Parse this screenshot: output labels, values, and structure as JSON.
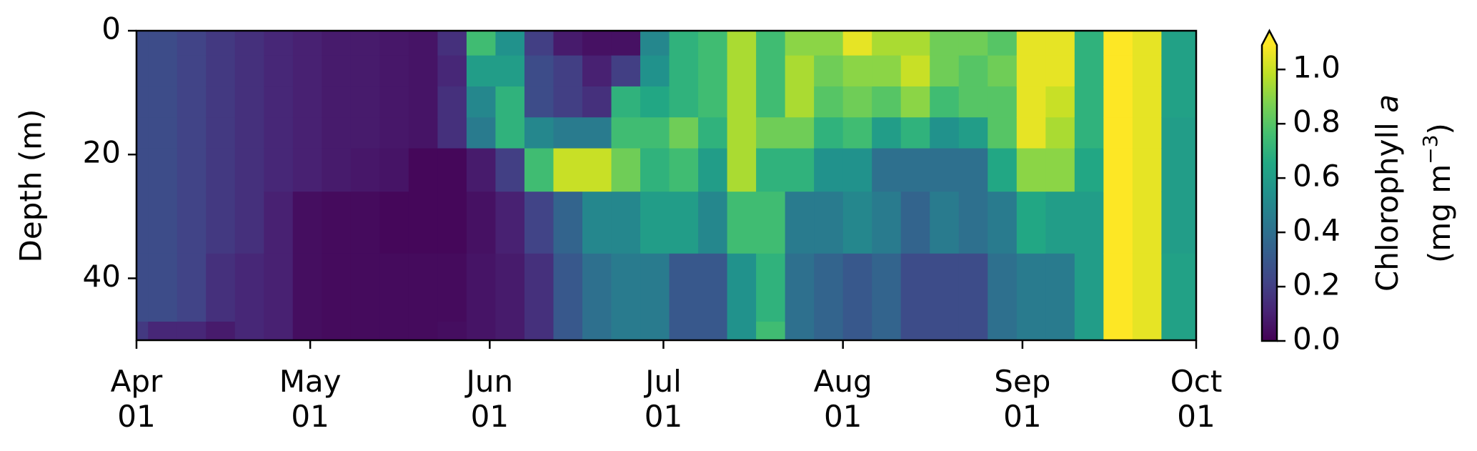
{
  "chart_data": {
    "type": "heatmap",
    "y_label": "Depth (m)",
    "colorbar_label": [
      "Chlorophyll",
      "a"
    ],
    "colorbar_units": [
      "(mg m",
      "−3",
      ")"
    ],
    "colormap": "viridis",
    "clim": [
      0,
      1.09
    ],
    "cticks": [
      {
        "value": 0,
        "label": "0.0"
      },
      0.2,
      0.4,
      0.6,
      0.8,
      {
        "value": 1,
        "label": "1.0"
      }
    ],
    "xlim": [
      "04-01",
      "10-01"
    ],
    "xticks": [
      {
        "value": "04-01",
        "label": [
          "Apr",
          "01"
        ]
      },
      {
        "value": "05-01",
        "label": [
          "May",
          "01"
        ]
      },
      {
        "value": "06-01",
        "label": [
          "Jun",
          "01"
        ]
      },
      {
        "value": "07-01",
        "label": [
          "Jul",
          "01"
        ]
      },
      {
        "value": "08-01",
        "label": [
          "Aug",
          "01"
        ]
      },
      {
        "value": "09-01",
        "label": [
          "Sep",
          "01"
        ]
      },
      {
        "value": "10-01",
        "label": [
          "Oct",
          "01"
        ]
      }
    ],
    "ylim": [
      50,
      0
    ],
    "yticks": [
      0,
      20,
      40
    ],
    "x_edges": [
      "04-01",
      "04-03",
      "04-08",
      "04-13",
      "04-18",
      "04-23",
      "04-28",
      "05-03",
      "05-08",
      "05-13",
      "05-18",
      "05-23",
      "05-28",
      "06-02",
      "06-07",
      "06-12",
      "06-17",
      "06-22",
      "06-27",
      "07-02",
      "07-07",
      "07-12",
      "07-17",
      "07-22",
      "07-27",
      "08-01",
      "08-06",
      "08-11",
      "08-16",
      "08-21",
      "08-26",
      "08-31",
      "09-05",
      "09-10",
      "09-15",
      "09-20",
      "09-25",
      "10-01"
    ],
    "depth_edges": [
      0,
      4,
      9,
      14,
      19,
      26,
      36,
      47,
      50
    ],
    "values": [
      [
        0.25,
        0.25,
        0.25,
        0.25,
        0.25,
        0.25,
        0.25,
        0.18
      ],
      [
        0.25,
        0.25,
        0.25,
        0.25,
        0.25,
        0.25,
        0.25,
        0.12
      ],
      [
        0.22,
        0.22,
        0.22,
        0.22,
        0.22,
        0.22,
        0.22,
        0.12
      ],
      [
        0.18,
        0.18,
        0.18,
        0.18,
        0.18,
        0.18,
        0.15,
        0.08
      ],
      [
        0.15,
        0.15,
        0.15,
        0.15,
        0.15,
        0.15,
        0.12,
        0.12
      ],
      [
        0.12,
        0.12,
        0.12,
        0.12,
        0.12,
        0.1,
        0.1,
        0.1
      ],
      [
        0.1,
        0.1,
        0.1,
        0.1,
        0.1,
        0.04,
        0.04,
        0.04
      ],
      [
        0.08,
        0.08,
        0.08,
        0.08,
        0.08,
        0.03,
        0.03,
        0.03
      ],
      [
        0.08,
        0.08,
        0.08,
        0.08,
        0.07,
        0.03,
        0.03,
        0.03
      ],
      [
        0.07,
        0.07,
        0.07,
        0.07,
        0.06,
        0.02,
        0.03,
        0.03
      ],
      [
        0.06,
        0.06,
        0.06,
        0.06,
        0.02,
        0.02,
        0.03,
        0.03
      ],
      [
        0.15,
        0.12,
        0.15,
        0.15,
        0.02,
        0.02,
        0.03,
        0.04
      ],
      [
        0.75,
        0.6,
        0.5,
        0.45,
        0.08,
        0.05,
        0.06,
        0.06
      ],
      [
        0.55,
        0.6,
        0.7,
        0.7,
        0.2,
        0.1,
        0.08,
        0.08
      ],
      [
        0.2,
        0.25,
        0.25,
        0.5,
        0.75,
        0.22,
        0.15,
        0.15
      ],
      [
        0.08,
        0.2,
        0.2,
        0.45,
        1.0,
        0.35,
        0.3,
        0.3
      ],
      [
        0.05,
        0.1,
        0.15,
        0.45,
        1.0,
        0.5,
        0.4,
        0.4
      ],
      [
        0.05,
        0.2,
        0.7,
        0.75,
        0.85,
        0.5,
        0.45,
        0.45
      ],
      [
        0.5,
        0.55,
        0.65,
        0.75,
        0.7,
        0.6,
        0.45,
        0.45
      ],
      [
        0.7,
        0.7,
        0.7,
        0.85,
        0.75,
        0.6,
        0.3,
        0.3
      ],
      [
        0.75,
        0.75,
        0.75,
        0.7,
        0.6,
        0.5,
        0.3,
        0.3
      ],
      [
        0.95,
        0.95,
        0.95,
        0.95,
        0.95,
        0.75,
        0.55,
        0.55
      ],
      [
        0.75,
        0.75,
        0.75,
        0.85,
        0.7,
        0.75,
        0.7,
        0.75
      ],
      [
        0.9,
        0.95,
        0.95,
        0.85,
        0.7,
        0.45,
        0.4,
        0.4
      ],
      [
        0.9,
        0.85,
        0.8,
        0.7,
        0.55,
        0.45,
        0.35,
        0.35
      ],
      [
        1.05,
        0.9,
        0.85,
        0.75,
        0.55,
        0.5,
        0.3,
        0.3
      ],
      [
        0.95,
        0.9,
        0.8,
        0.6,
        0.4,
        0.45,
        0.35,
        0.35
      ],
      [
        0.95,
        1.0,
        0.9,
        0.7,
        0.4,
        0.35,
        0.25,
        0.25
      ],
      [
        0.85,
        0.85,
        0.75,
        0.55,
        0.4,
        0.45,
        0.25,
        0.25
      ],
      [
        0.85,
        0.8,
        0.8,
        0.6,
        0.4,
        0.4,
        0.25,
        0.25
      ],
      [
        0.8,
        0.85,
        0.8,
        0.8,
        0.65,
        0.45,
        0.4,
        0.4
      ],
      [
        1.05,
        1.05,
        1.05,
        1.05,
        0.9,
        0.65,
        0.45,
        0.45
      ],
      [
        1.05,
        1.05,
        1.0,
        0.95,
        0.9,
        0.6,
        0.45,
        0.45
      ],
      [
        0.7,
        0.7,
        0.7,
        0.7,
        0.65,
        0.6,
        0.6,
        0.6
      ],
      [
        1.15,
        1.15,
        1.15,
        1.15,
        1.15,
        1.15,
        1.15,
        1.15
      ],
      [
        1.05,
        1.05,
        1.05,
        1.05,
        1.05,
        1.05,
        1.05,
        1.05
      ],
      [
        0.62,
        0.62,
        0.62,
        0.6,
        0.6,
        0.6,
        0.62,
        0.62
      ]
    ]
  }
}
